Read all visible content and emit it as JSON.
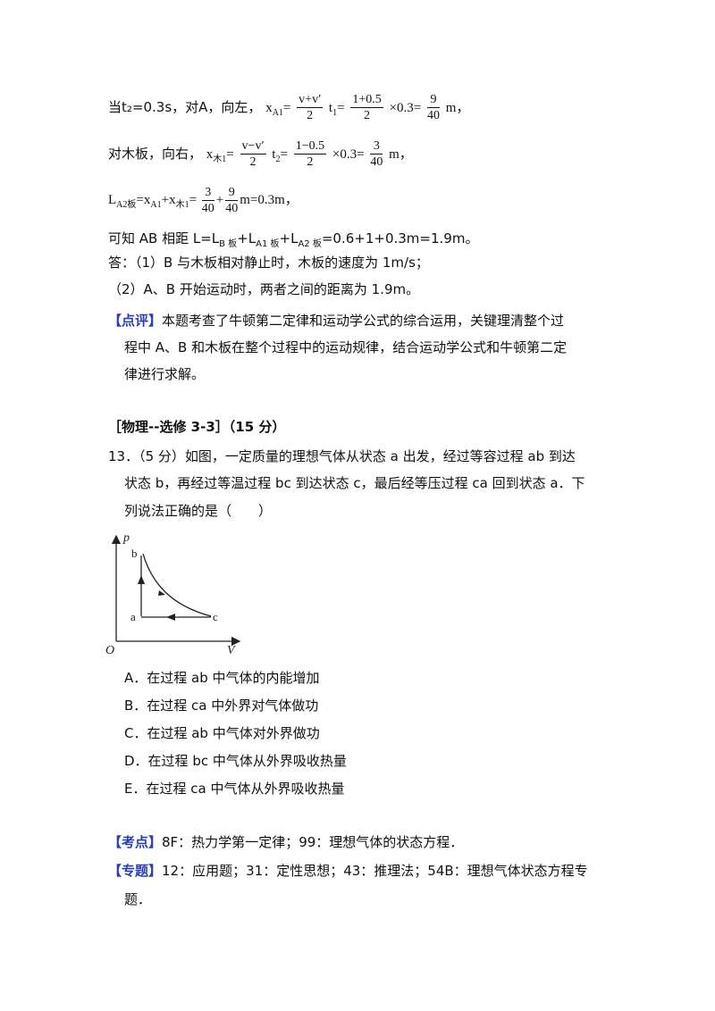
{
  "solution": {
    "line1": {
      "prefix": "当t₂=0.3s，对A，向左，",
      "var": "x",
      "var_sub": "A1",
      "frac1_num": "v+v′",
      "frac1_den": "2",
      "mid": "t",
      "mid_sub": "1",
      "frac2_num": "1+0.5",
      "frac2_den": "2",
      "times": "×0.3=",
      "frac3_num": "9",
      "frac3_den": "40",
      "unit": "m，"
    },
    "line2": {
      "prefix": "对木板，向右，",
      "var": "x",
      "var_sub": "木1",
      "frac1_num": "v−v′",
      "frac1_den": "2",
      "mid": "t",
      "mid_sub": "2",
      "frac2_num": "1−0.5",
      "frac2_den": "2",
      "times": "×0.3=",
      "frac3_num": "3",
      "frac3_den": "40",
      "unit": "m，"
    },
    "line3": {
      "var": "L",
      "var_sub": "A2板",
      "eq": "=x",
      "s1": "A1",
      "plus": "+x",
      "s2": "木1",
      "eq2": "=",
      "f1_num": "3",
      "f1_den": "40",
      "plus2": "+",
      "f2_num": "9",
      "f2_den": "40",
      "tail": "m=0.3m，"
    },
    "line4": {
      "a": "可知 AB 相距 L=L",
      "s1": "B 板",
      "b": "+L",
      "s2": "A1 板",
      "c": "+L",
      "s3": "A2 板",
      "d": "=0.6+1+0.3m=1.9m。"
    },
    "answer1": "答：（1）B 与木板相对静止时，木板的速度为 1m/s；",
    "answer2": "（2）A、B 开始运动时，两者之间的距离为 1.9m。",
    "comment_tag": "【点评】",
    "comment_l1": "本题考查了牛顿第二定律和运动学公式的综合运用，关键理清整个过",
    "comment_l2": "程中 A、B 和木板在整个过程中的运动规律，结合运动学公式和牛顿第二定",
    "comment_l3": "律进行求解。"
  },
  "section_title": "［物理--选修 3-3］（15 分）",
  "question": {
    "l1": "13．（5 分）如图，一定质量的理想气体从状态 a 出发，经过等容过程 ab 到达",
    "l2": "状态 b，再经过等温过程 bc 到达状态 c，最后经等压过程 ca 回到状态 a．下",
    "l3": "列说法正确的是（　　）"
  },
  "figure": {
    "axis_y": "p",
    "axis_x": "V",
    "origin": "O",
    "point_a": "a",
    "point_b": "b",
    "point_c": "c"
  },
  "options": [
    "A．在过程 ab 中气体的内能增加",
    "B．在过程 ca 中外界对气体做功",
    "C．在过程 ab 中气体对外界做功",
    "D．在过程 bc 中气体从外界吸收热量",
    "E．在过程 ca 中气体从外界吸收热量"
  ],
  "kaodian_tag": "【考点】",
  "kaodian": "8F：热力学第一定律；99：理想气体的状态方程．",
  "zhuanti_tag": "【专题】",
  "zhuanti_l1": "12：应用题；31：定性思想；43：推理法；54B：理想气体状态方程专",
  "zhuanti_l2": "题．",
  "colors": {
    "tag": "#2b3fb5",
    "text": "#111111"
  }
}
